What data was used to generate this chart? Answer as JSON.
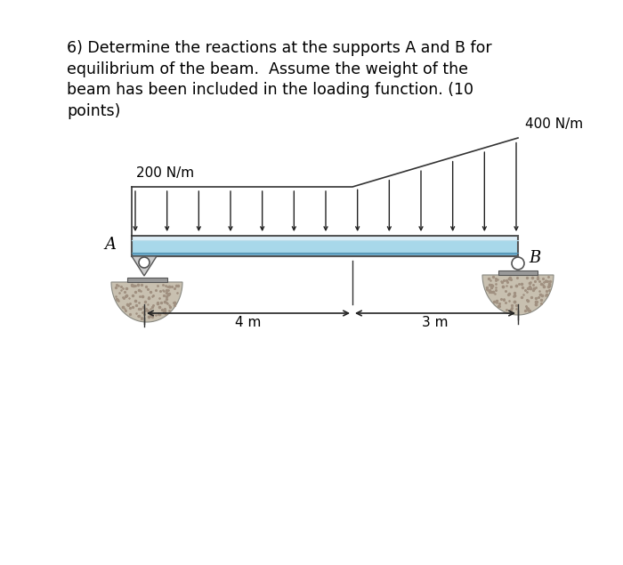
{
  "title_text": "6) Determine the reactions at the supports A and B for\nequilibrium of the beam.  Assume the weight of the\nbeam has been included in the loading function. (10\npoints)",
  "title_fontsize": 12.5,
  "bg_color": "#ffffff",
  "load_label_left": "200 N/m",
  "load_label_right": "400 N/m",
  "dim_label_left": "4 m",
  "dim_label_right": "3 m",
  "label_A": "A",
  "label_B": "B",
  "arrow_color": "#222222",
  "n_arrows": 13,
  "beam_color_light": "#c5e4ef",
  "beam_color_mid": "#8ec8df",
  "beam_color_dark": "#5aaac5",
  "beam_outline": "#555555",
  "support_fill": "#d0c0a0",
  "support_outline": "#555555",
  "ground_fill": "#c8b898",
  "ground_speckle": "#b0a080"
}
